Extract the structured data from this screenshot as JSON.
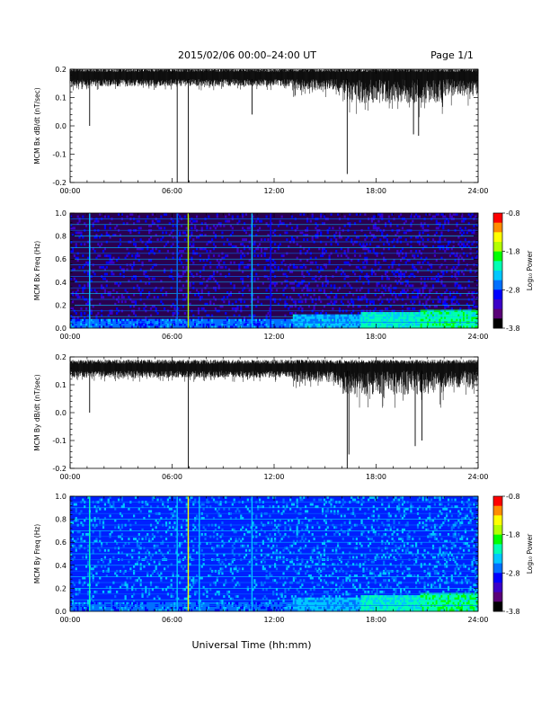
{
  "header": {
    "title": "2015/02/06  00:00–24:00 UT",
    "page": "Page 1/1"
  },
  "x_axis": {
    "label": "Universal Time (hh:mm)",
    "tick_labels": [
      "00:00",
      "06:00",
      "12:00",
      "18:00",
      "24:00"
    ]
  },
  "colorbar": {
    "label": "Log₁₀ Power",
    "tick_labels": [
      "-0.8",
      "-1.8",
      "-2.8",
      "-3.8"
    ]
  },
  "chart_data": [
    {
      "type": "line",
      "ylabel": "MCM Bx dB/dt (nT/sec)",
      "x_unit": "hours UT",
      "xlim": [
        0,
        24
      ],
      "ylim": [
        -0.2,
        0.2
      ],
      "ytick_labels": [
        "0.2",
        "0.1",
        "0.0",
        "-0.1",
        "-0.2"
      ],
      "baseline": 0.165,
      "spikes": [
        {
          "x": 1.15,
          "y": 0.0
        },
        {
          "x": 6.3,
          "y": -0.21
        },
        {
          "x": 6.95,
          "y": -0.21
        },
        {
          "x": 10.7,
          "y": 0.04
        },
        {
          "x": 16.3,
          "y": -0.17
        },
        {
          "x": 20.2,
          "y": -0.03
        },
        {
          "x": 20.5,
          "y": -0.035
        }
      ]
    },
    {
      "type": "heatmap",
      "ylabel": "MCM Bx Freq (Hz)",
      "x_unit": "hours UT",
      "xlim": [
        0,
        24
      ],
      "ylim": [
        0,
        1.0
      ],
      "ytick_labels": [
        "1.0",
        "0.8",
        "0.6",
        "0.4",
        "0.2",
        "0.0"
      ],
      "zlim": [
        -3.8,
        -0.8
      ],
      "zlabel": "Log₁₀ Power"
    },
    {
      "type": "line",
      "ylabel": "MCM By dB/dt (nT/sec)",
      "x_unit": "hours UT",
      "xlim": [
        0,
        24
      ],
      "ylim": [
        -0.2,
        0.2
      ],
      "ytick_labels": [
        "0.2",
        "0.1",
        "0.0",
        "-0.1",
        "-0.2"
      ],
      "baseline": 0.15,
      "spikes": [
        {
          "x": 1.15,
          "y": 0.0
        },
        {
          "x": 6.95,
          "y": -0.21
        },
        {
          "x": 16.3,
          "y": -0.21
        },
        {
          "x": 16.4,
          "y": -0.15
        },
        {
          "x": 20.3,
          "y": -0.12
        },
        {
          "x": 20.7,
          "y": -0.1
        }
      ]
    },
    {
      "type": "heatmap",
      "ylabel": "MCM By Freq (Hz)",
      "x_unit": "hours UT",
      "xlim": [
        0,
        24
      ],
      "ylim": [
        0,
        1.0
      ],
      "ytick_labels": [
        "1.0",
        "0.8",
        "0.6",
        "0.4",
        "0.2",
        "0.0"
      ],
      "zlim": [
        -3.8,
        -0.8
      ],
      "zlabel": "Log₁₀ Power"
    }
  ],
  "colors": {
    "cmap": [
      "#000000",
      "#5a0078",
      "#3c00c8",
      "#0000ff",
      "#0070ff",
      "#00c8ff",
      "#00ffb4",
      "#00ff00",
      "#b4ff00",
      "#ffff00",
      "#ff8c00",
      "#ff0000"
    ]
  }
}
